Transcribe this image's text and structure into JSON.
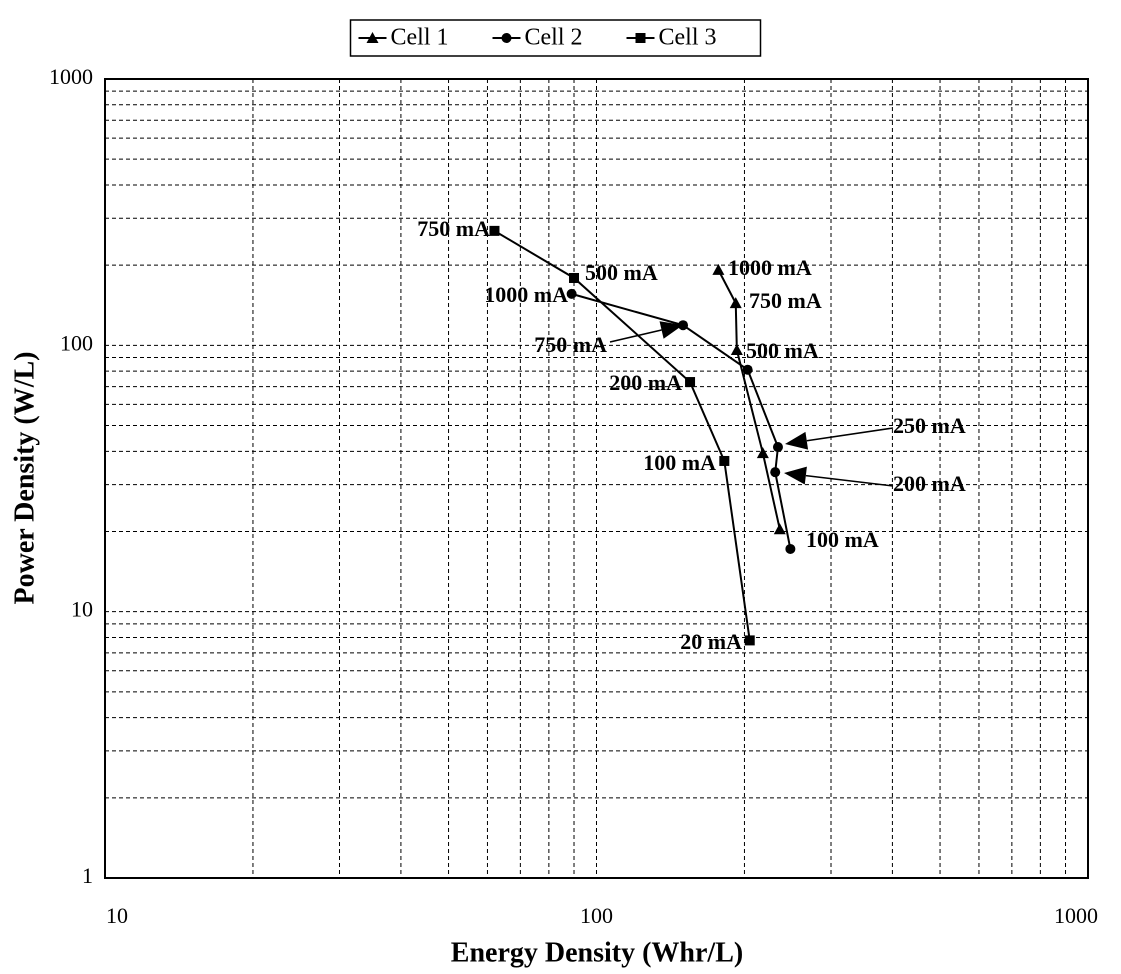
{
  "chart_data": {
    "type": "line",
    "xlabel": "Energy Density (Whr/L)",
    "ylabel": "Power Density (W/L)",
    "xscale": "log",
    "yscale": "log",
    "xlim": [
      10,
      1000
    ],
    "ylim": [
      1,
      1000
    ],
    "xticks": [
      10,
      100,
      1000
    ],
    "yticks": [
      1,
      10,
      100,
      1000
    ],
    "grid": true,
    "legend": "top",
    "series": [
      {
        "name": "Cell 1",
        "color": "#000000",
        "marker": "triangle",
        "x": [
          177,
          192,
          193,
          218,
          236
        ],
        "values": [
          192,
          144,
          96,
          39.4,
          20.4
        ]
      },
      {
        "name": "Cell 2",
        "color": "#000000",
        "marker": "circle",
        "x": [
          89,
          150,
          203,
          234,
          231,
          248
        ],
        "values": [
          156,
          119,
          81,
          41.5,
          33.4,
          17.2
        ]
      },
      {
        "name": "Cell 3",
        "color": "#000000",
        "marker": "square",
        "x": [
          62,
          90,
          155,
          182,
          205
        ],
        "values": [
          269,
          179,
          72.8,
          36.8,
          7.8
        ]
      }
    ],
    "annotations": [
      "750 mA",
      "500 mA",
      "1000 mA",
      "750 mA",
      "200 mA",
      "100 mA",
      "20 mA",
      "1000 mA",
      "750 mA",
      "500 mA",
      "250 mA",
      "200 mA",
      "100 mA"
    ]
  }
}
